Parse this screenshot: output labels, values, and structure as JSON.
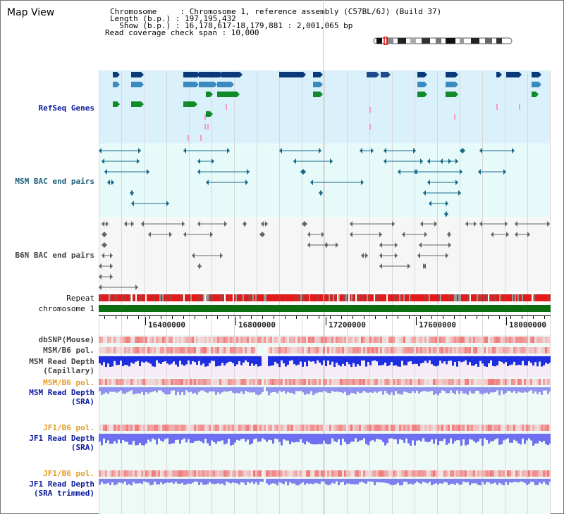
{
  "title": "Map View",
  "header": {
    "line1": "Chromosome     : Chromosome 1, reference assembly (C57BL/6J) (Build 37)",
    "line2": "Length (b.p.) : 197,195,432",
    "line3": "  Show (b.p.) : 16,178,617-18,179,881 : 2,001,065 bp",
    "line4": "Read coverage check span : 10,000"
  },
  "tracks": {
    "refseq": "RefSeq Genes",
    "msm_bac": "MSM BAC end pairs",
    "b6n_bac": "B6N BAC end pairs",
    "repeat": "Repeat",
    "chromosome": "chromosome 1",
    "dbsnp": "dbSNP(Mouse)",
    "msm_b6_pol_1": "MSM/B6 pol.",
    "msm_read_depth_cap": "MSM Read Depth\n(Capillary)",
    "msm_b6_pol_2": "MSM/B6 pol.",
    "msm_read_depth_sra": "MSM Read Depth\n(SRA)",
    "jf1_b6_pol_1": "JF1/B6 pol.",
    "jf1_read_depth_sra": "JF1 Read Depth\n(SRA)",
    "jf1_b6_pol_2": "JF1/B6 pol.",
    "jf1_read_depth_trim": "JF1 Read Depth\n(SRA trimmed)"
  },
  "axis": {
    "ticks": [
      "16400000",
      "16800000",
      "17200000",
      "17600000",
      "18000000"
    ]
  },
  "colors": {
    "refseq_bg": "#daf0fa",
    "bac_bg": "#e6fafa",
    "b6n_bg": "#f5f5f5",
    "chrom": "#0c6e10",
    "repeat": "#e21a1a"
  }
}
